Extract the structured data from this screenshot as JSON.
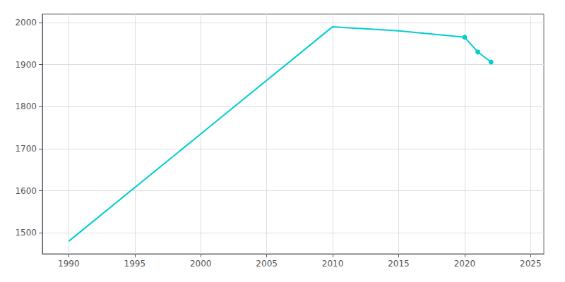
{
  "chart_data": {
    "type": "line",
    "x": [
      1990,
      2000,
      2010,
      2015,
      2020,
      2021,
      2022
    ],
    "values": [
      1480,
      1735,
      1990,
      1980,
      1965,
      1930,
      1906
    ],
    "color": "#00CED1",
    "marker": "circle",
    "marker_x": [
      2020,
      2021,
      2022
    ],
    "xlim": [
      1988,
      2026
    ],
    "ylim": [
      1450,
      2020
    ],
    "xticks": [
      1990,
      1995,
      2000,
      2005,
      2010,
      2015,
      2020,
      2025
    ],
    "yticks": [
      1500,
      1600,
      1700,
      1800,
      1900,
      2000
    ],
    "grid": true
  }
}
